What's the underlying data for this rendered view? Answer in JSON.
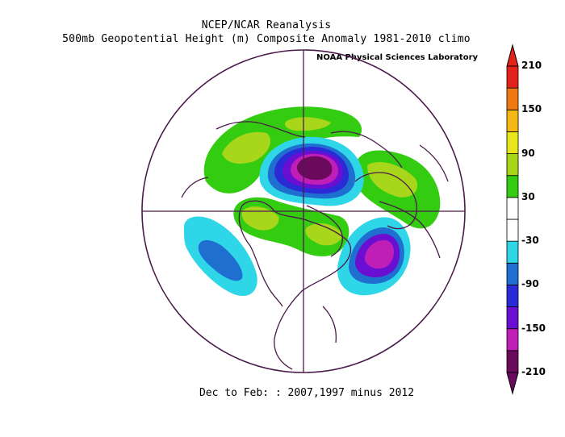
{
  "header": {
    "title_line1": "NCEP/NCAR Reanalysis",
    "title_line2": "500mb Geopotential Height (m) Composite Anomaly 1981-2010 climo",
    "credit": "NOAA Physical Sciences Laboratory"
  },
  "footer": {
    "caption": "Dec to Feb: : 2007,1997 minus 2012"
  },
  "colorbar": {
    "labels": [
      "210",
      "150",
      "90",
      "30",
      "-30",
      "-90",
      "-150",
      "-210"
    ],
    "bins": [
      {
        "color": "#6b0a5c"
      },
      {
        "color": "#c01fb7"
      },
      {
        "color": "#6a0fd1"
      },
      {
        "color": "#2a2ad6"
      },
      {
        "color": "#1e6fd0"
      },
      {
        "color": "#2fd6e8"
      },
      {
        "color": "#ffffff"
      },
      {
        "color": "#ffffff"
      },
      {
        "color": "#33cc11"
      },
      {
        "color": "#a8d61a"
      },
      {
        "color": "#e8e51a"
      },
      {
        "color": "#f5b817"
      },
      {
        "color": "#ef7a13"
      },
      {
        "color": "#e2231a"
      }
    ]
  },
  "map": {
    "projection": "north-polar-stereographic",
    "outline_color": "#4b1a4b",
    "anomalies": [
      {
        "name": "arctic-low",
        "sign": "negative"
      },
      {
        "name": "east-pacific-low",
        "sign": "negative"
      },
      {
        "name": "north-atlantic-low",
        "sign": "negative"
      },
      {
        "name": "eurasia-high",
        "sign": "positive"
      },
      {
        "name": "siberia-high",
        "sign": "positive"
      },
      {
        "name": "north-america-high",
        "sign": "positive"
      }
    ]
  }
}
